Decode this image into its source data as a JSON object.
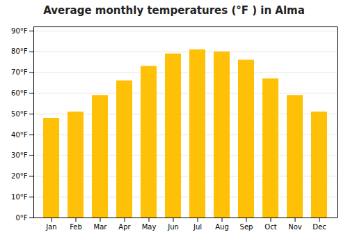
{
  "chart_data": {
    "type": "bar",
    "title": "Average monthly temperatures (°F ) in Alma",
    "categories": [
      "Jan",
      "Feb",
      "Mar",
      "Apr",
      "May",
      "Jun",
      "Jul",
      "Aug",
      "Sep",
      "Oct",
      "Nov",
      "Dec"
    ],
    "values": [
      48,
      51,
      59,
      66,
      73,
      79,
      81,
      80,
      76,
      67,
      59,
      51
    ],
    "color": "#FFC107",
    "ylim": [
      0,
      92
    ],
    "yticks": [
      {
        "value": 0,
        "label": "0°F"
      },
      {
        "value": 10,
        "label": "10°F"
      },
      {
        "value": 20,
        "label": "20°F"
      },
      {
        "value": 30,
        "label": "30°F"
      },
      {
        "value": 40,
        "label": "40°F"
      },
      {
        "value": 50,
        "label": "50°F"
      },
      {
        "value": 60,
        "label": "60°F"
      },
      {
        "value": 70,
        "label": "70°F"
      },
      {
        "value": 80,
        "label": "80°F"
      },
      {
        "value": 90,
        "label": "90°F"
      }
    ],
    "grid": true
  }
}
